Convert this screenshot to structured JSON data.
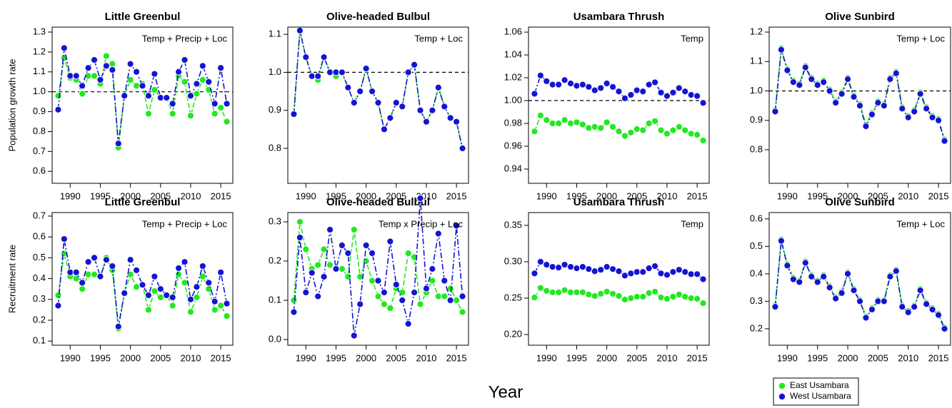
{
  "chart_data": [
    {
      "type": "line",
      "title": "Little Greenbul",
      "annotation": "Temp + Precip + Loc",
      "ylabel": "Population growth rate",
      "x": [
        1988,
        1989,
        1990,
        1991,
        1992,
        1993,
        1994,
        1995,
        1996,
        1997,
        1998,
        1999,
        2000,
        2001,
        2002,
        2003,
        2004,
        2005,
        2006,
        2007,
        2008,
        2009,
        2010,
        2011,
        2012,
        2013,
        2014,
        2015,
        2016
      ],
      "xlim": [
        1987,
        2017
      ],
      "xticks": [
        1990,
        1995,
        2000,
        2005,
        2010,
        2015
      ],
      "ylim": [
        0.54,
        1.325
      ],
      "yticks": [
        0.6,
        0.7,
        0.8,
        0.9,
        {
          "value": 1,
          "label": "1.0"
        },
        1.1,
        1.2,
        1.3
      ],
      "refline": 1,
      "series": [
        {
          "name": "East Usambara",
          "color": "#22e822",
          "values": [
            0.98,
            1.17,
            1.07,
            1.06,
            0.99,
            1.08,
            1.08,
            1.04,
            1.18,
            1.14,
            0.72,
            0.98,
            1.06,
            1.03,
            1.04,
            0.89,
            1.01,
            0.97,
            0.97,
            0.89,
            1.08,
            1.05,
            0.88,
            0.99,
            1.06,
            1.01,
            0.89,
            0.92,
            0.85
          ]
        },
        {
          "name": "West Usambara",
          "color": "#1414d2",
          "values": [
            0.91,
            1.22,
            1.08,
            1.08,
            1.03,
            1.12,
            1.16,
            1.06,
            1.13,
            1.11,
            0.74,
            0.98,
            1.14,
            1.1,
            1.03,
            0.98,
            1.09,
            0.97,
            0.97,
            0.94,
            1.1,
            1.16,
            0.98,
            1.04,
            1.13,
            1.05,
            0.94,
            1.12,
            0.94
          ]
        }
      ]
    },
    {
      "type": "line",
      "title": "Olive-headed Bulbul",
      "annotation": "Temp + Loc",
      "x": [
        1988,
        1989,
        1990,
        1991,
        1992,
        1993,
        1994,
        1995,
        1996,
        1997,
        1998,
        1999,
        2000,
        2001,
        2002,
        2003,
        2004,
        2005,
        2006,
        2007,
        2008,
        2009,
        2010,
        2011,
        2012,
        2013,
        2014,
        2015,
        2016
      ],
      "xlim": [
        1987,
        2017
      ],
      "xticks": [
        1990,
        1995,
        2000,
        2005,
        2010,
        2015
      ],
      "ylim": [
        0.708,
        1.119
      ],
      "yticks": [
        0.8,
        0.9,
        {
          "value": 1,
          "label": "1.0"
        },
        1.1
      ],
      "refline": 1,
      "series": [
        {
          "name": "East Usambara",
          "color": "#22e822",
          "values": [
            0.89,
            1.11,
            1.04,
            0.99,
            0.98,
            1.04,
            1.0,
            0.99,
            1.0,
            0.96,
            0.92,
            0.95,
            1.01,
            0.95,
            0.92,
            0.85,
            0.88,
            0.92,
            0.91,
            1.0,
            1.02,
            0.9,
            0.87,
            0.9,
            0.96,
            0.91,
            0.88,
            0.87,
            0.8
          ]
        },
        {
          "name": "West Usambara",
          "color": "#1414d2",
          "values": [
            0.89,
            1.11,
            1.04,
            0.99,
            0.99,
            1.04,
            1.0,
            1.0,
            1.0,
            0.96,
            0.92,
            0.95,
            1.01,
            0.95,
            0.92,
            0.85,
            0.88,
            0.92,
            0.91,
            1.0,
            1.02,
            0.9,
            0.87,
            0.9,
            0.96,
            0.91,
            0.88,
            0.87,
            0.8
          ]
        }
      ]
    },
    {
      "type": "line",
      "title": "Usambara Thrush",
      "annotation": "Temp",
      "x": [
        1988,
        1989,
        1990,
        1991,
        1992,
        1993,
        1994,
        1995,
        1996,
        1997,
        1998,
        1999,
        2000,
        2001,
        2002,
        2003,
        2004,
        2005,
        2006,
        2007,
        2008,
        2009,
        2010,
        2011,
        2012,
        2013,
        2014,
        2015,
        2016
      ],
      "xlim": [
        1987,
        2017
      ],
      "xticks": [
        1990,
        1995,
        2000,
        2005,
        2010,
        2015
      ],
      "ylim": [
        0.9275,
        1.0644
      ],
      "yticks": [
        0.94,
        0.96,
        0.98,
        {
          "value": 1,
          "label": "1.00"
        },
        1.02,
        1.04,
        1.06
      ],
      "refline": 1,
      "series": [
        {
          "name": "East Usambara",
          "color": "#22e822",
          "values": [
            0.973,
            0.987,
            0.983,
            0.98,
            0.98,
            0.983,
            0.98,
            0.981,
            0.979,
            0.976,
            0.977,
            0.976,
            0.981,
            0.977,
            0.973,
            0.969,
            0.972,
            0.975,
            0.974,
            0.98,
            0.982,
            0.974,
            0.971,
            0.974,
            0.977,
            0.974,
            0.971,
            0.97,
            0.965
          ]
        },
        {
          "name": "West Usambara",
          "color": "#1414d2",
          "values": [
            1.006,
            1.022,
            1.017,
            1.014,
            1.014,
            1.018,
            1.015,
            1.013,
            1.014,
            1.012,
            1.009,
            1.011,
            1.015,
            1.012,
            1.008,
            1.002,
            1.005,
            1.009,
            1.008,
            1.014,
            1.016,
            1.007,
            1.004,
            1.007,
            1.011,
            1.008,
            1.005,
            1.004,
            0.998
          ]
        }
      ]
    },
    {
      "type": "line",
      "title": "Olive Sunbird",
      "annotation": "Temp + Loc",
      "x": [
        1988,
        1989,
        1990,
        1991,
        1992,
        1993,
        1994,
        1995,
        1996,
        1997,
        1998,
        1999,
        2000,
        2001,
        2002,
        2003,
        2004,
        2005,
        2006,
        2007,
        2008,
        2009,
        2010,
        2011,
        2012,
        2013,
        2014,
        2015,
        2016
      ],
      "xlim": [
        1987,
        2017
      ],
      "xticks": [
        1990,
        1995,
        2000,
        2005,
        2010,
        2015
      ],
      "ylim": [
        0.686,
        1.217
      ],
      "yticks": [
        0.8,
        0.9,
        {
          "value": 1,
          "label": "1.0"
        },
        1.1,
        1.2
      ],
      "refline": 1,
      "series": [
        {
          "name": "East Usambara",
          "color": "#22e822",
          "values": [
            0.935,
            1.145,
            1.075,
            1.035,
            1.025,
            1.085,
            1.045,
            1.025,
            1.035,
            1.005,
            0.965,
            0.995,
            1.045,
            0.985,
            0.955,
            0.885,
            0.925,
            0.965,
            0.955,
            1.045,
            1.065,
            0.945,
            0.915,
            0.935,
            0.995,
            0.945,
            0.915,
            0.905,
            0.835
          ]
        },
        {
          "name": "West Usambara",
          "color": "#1414d2",
          "values": [
            0.93,
            1.14,
            1.07,
            1.03,
            1.02,
            1.08,
            1.04,
            1.02,
            1.03,
            1.0,
            0.96,
            0.99,
            1.04,
            0.98,
            0.95,
            0.88,
            0.92,
            0.96,
            0.95,
            1.04,
            1.06,
            0.94,
            0.91,
            0.93,
            0.99,
            0.94,
            0.91,
            0.9,
            0.83
          ]
        }
      ]
    },
    {
      "type": "line",
      "title": "Little Greenbul",
      "annotation": "Temp + Precip + Loc",
      "ylabel": "Recruitment rate",
      "x": [
        1988,
        1989,
        1990,
        1991,
        1992,
        1993,
        1994,
        1995,
        1996,
        1997,
        1998,
        1999,
        2000,
        2001,
        2002,
        2003,
        2004,
        2005,
        2006,
        2007,
        2008,
        2009,
        2010,
        2011,
        2012,
        2013,
        2014,
        2015,
        2016
      ],
      "xlim": [
        1987,
        2017
      ],
      "xticks": [
        1990,
        1995,
        2000,
        2005,
        2010,
        2015
      ],
      "ylim": [
        0.08,
        0.717
      ],
      "yticks": [
        0.1,
        0.2,
        0.3,
        0.4,
        0.5,
        0.6,
        0.7
      ],
      "series": [
        {
          "name": "East Usambara",
          "color": "#22e822",
          "values": [
            0.32,
            0.52,
            0.41,
            0.4,
            0.35,
            0.42,
            0.42,
            0.41,
            0.5,
            0.44,
            0.16,
            0.33,
            0.42,
            0.36,
            0.37,
            0.25,
            0.34,
            0.31,
            0.32,
            0.27,
            0.42,
            0.38,
            0.24,
            0.31,
            0.41,
            0.35,
            0.25,
            0.27,
            0.22
          ]
        },
        {
          "name": "West Usambara",
          "color": "#1414d2",
          "values": [
            0.27,
            0.59,
            0.43,
            0.43,
            0.38,
            0.48,
            0.5,
            0.41,
            0.49,
            0.46,
            0.17,
            0.33,
            0.49,
            0.44,
            0.37,
            0.32,
            0.41,
            0.35,
            0.32,
            0.31,
            0.45,
            0.48,
            0.3,
            0.36,
            0.46,
            0.38,
            0.29,
            0.43,
            0.28
          ]
        }
      ]
    },
    {
      "type": "line",
      "title": "Olive-headed Bulbul",
      "annotation": "Temp x Precip + Loc",
      "x": [
        1988,
        1989,
        1990,
        1991,
        1992,
        1993,
        1994,
        1995,
        1996,
        1997,
        1998,
        1999,
        2000,
        2001,
        2002,
        2003,
        2004,
        2005,
        2006,
        2007,
        2008,
        2009,
        2010,
        2011,
        2012,
        2013,
        2014,
        2015,
        2016
      ],
      "xlim": [
        1987,
        2017
      ],
      "xticks": [
        1990,
        1995,
        2000,
        2005,
        2010,
        2015
      ],
      "ylim": [
        -0.0145,
        0.3236
      ],
      "yticks": [
        {
          "value": 0,
          "label": "0.0"
        },
        0.1,
        0.2,
        0.3
      ],
      "series": [
        {
          "name": "East Usambara",
          "color": "#22e822",
          "values": [
            0.1,
            0.3,
            0.23,
            0.18,
            0.19,
            0.23,
            0.19,
            0.18,
            0.18,
            0.16,
            0.28,
            0.16,
            0.2,
            0.15,
            0.11,
            0.09,
            0.08,
            0.13,
            0.12,
            0.22,
            0.21,
            0.09,
            0.12,
            0.15,
            0.11,
            0.11,
            0.13,
            0.1,
            0.07
          ]
        },
        {
          "name": "West Usambara",
          "color": "#1414d2",
          "values": [
            0.07,
            0.26,
            0.12,
            0.17,
            0.11,
            0.16,
            0.28,
            0.18,
            0.24,
            0.22,
            0.01,
            0.09,
            0.24,
            0.22,
            0.15,
            0.12,
            0.25,
            0.14,
            0.1,
            0.04,
            0.12,
            0.36,
            0.13,
            0.18,
            0.27,
            0.15,
            0.1,
            0.29,
            0.11
          ]
        }
      ]
    },
    {
      "type": "line",
      "title": "Usambara Thrush",
      "annotation": "Temp",
      "x": [
        1988,
        1989,
        1990,
        1991,
        1992,
        1993,
        1994,
        1995,
        1996,
        1997,
        1998,
        1999,
        2000,
        2001,
        2002,
        2003,
        2004,
        2005,
        2006,
        2007,
        2008,
        2009,
        2010,
        2011,
        2012,
        2013,
        2014,
        2015,
        2016
      ],
      "xlim": [
        1987,
        2017
      ],
      "xticks": [
        1990,
        1995,
        2000,
        2005,
        2010,
        2015
      ],
      "ylim": [
        0.1853,
        0.3676
      ],
      "yticks": [
        {
          "value": 0.2,
          "label": "0.20"
        },
        0.25,
        {
          "value": 0.3,
          "label": "0.30"
        },
        0.35
      ],
      "series": [
        {
          "name": "East Usambara",
          "color": "#22e822",
          "values": [
            0.251,
            0.264,
            0.26,
            0.258,
            0.258,
            0.261,
            0.258,
            0.258,
            0.258,
            0.255,
            0.253,
            0.256,
            0.259,
            0.256,
            0.253,
            0.248,
            0.25,
            0.252,
            0.252,
            0.257,
            0.259,
            0.251,
            0.249,
            0.252,
            0.255,
            0.252,
            0.25,
            0.249,
            0.243
          ]
        },
        {
          "name": "West Usambara",
          "color": "#1414d2",
          "values": [
            0.284,
            0.3,
            0.296,
            0.293,
            0.292,
            0.296,
            0.293,
            0.291,
            0.293,
            0.29,
            0.287,
            0.289,
            0.293,
            0.29,
            0.287,
            0.281,
            0.284,
            0.286,
            0.286,
            0.291,
            0.294,
            0.284,
            0.282,
            0.286,
            0.289,
            0.286,
            0.283,
            0.283,
            0.276
          ]
        }
      ]
    },
    {
      "type": "line",
      "title": "Olive Sunbird",
      "annotation": "Temp + Loc",
      "x": [
        1988,
        1989,
        1990,
        1991,
        1992,
        1993,
        1994,
        1995,
        1996,
        1997,
        1998,
        1999,
        2000,
        2001,
        2002,
        2003,
        2004,
        2005,
        2006,
        2007,
        2008,
        2009,
        2010,
        2011,
        2012,
        2013,
        2014,
        2015,
        2016
      ],
      "xlim": [
        1987,
        2017
      ],
      "xticks": [
        1990,
        1995,
        2000,
        2005,
        2010,
        2015
      ],
      "ylim": [
        0.14,
        0.623
      ],
      "yticks": [
        0.2,
        0.3,
        0.4,
        0.5,
        0.6
      ],
      "series": [
        {
          "name": "East Usambara",
          "color": "#22e822",
          "values": [
            0.285,
            0.525,
            0.435,
            0.385,
            0.375,
            0.445,
            0.395,
            0.375,
            0.395,
            0.355,
            0.315,
            0.335,
            0.405,
            0.345,
            0.305,
            0.245,
            0.275,
            0.305,
            0.305,
            0.395,
            0.415,
            0.285,
            0.265,
            0.285,
            0.345,
            0.295,
            0.275,
            0.255,
            0.205
          ]
        },
        {
          "name": "West Usambara",
          "color": "#1414d2",
          "values": [
            0.28,
            0.52,
            0.43,
            0.38,
            0.37,
            0.44,
            0.39,
            0.37,
            0.39,
            0.35,
            0.31,
            0.33,
            0.4,
            0.34,
            0.3,
            0.24,
            0.27,
            0.3,
            0.3,
            0.39,
            0.41,
            0.28,
            0.26,
            0.28,
            0.34,
            0.29,
            0.27,
            0.25,
            0.2
          ]
        }
      ]
    }
  ],
  "xlabel": "Year"
}
